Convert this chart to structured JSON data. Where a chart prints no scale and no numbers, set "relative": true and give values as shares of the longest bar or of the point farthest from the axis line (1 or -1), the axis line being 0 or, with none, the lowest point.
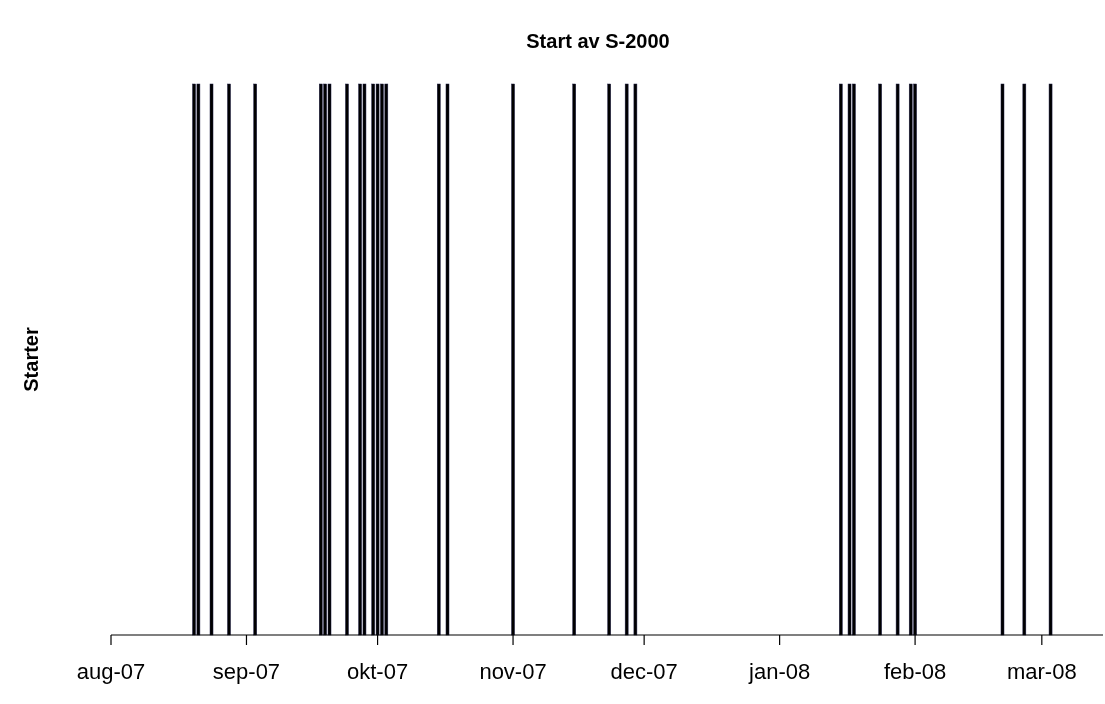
{
  "chart_data": {
    "type": "bar",
    "title": "Start av S-2000",
    "ylabel": "Starter",
    "relative": true,
    "color": "#000000",
    "x": [
      "2007-08-20",
      "2007-08-21",
      "2007-08-24",
      "2007-08-28",
      "2007-09-03",
      "2007-09-18",
      "2007-09-19",
      "2007-09-20",
      "2007-09-24",
      "2007-09-27",
      "2007-09-28",
      "2007-09-30",
      "2007-10-01",
      "2007-10-02",
      "2007-10-03",
      "2007-10-15",
      "2007-10-17",
      "2007-11-01",
      "2007-11-15",
      "2007-11-23",
      "2007-11-27",
      "2007-11-29",
      "2008-01-15",
      "2008-01-17",
      "2008-01-18",
      "2008-01-24",
      "2008-01-28",
      "2008-01-31",
      "2008-02-01",
      "2008-02-21",
      "2008-02-26",
      "2008-03-03"
    ],
    "values": [
      1,
      1,
      1,
      1,
      1,
      1,
      1,
      1,
      1,
      1,
      1,
      1,
      1,
      1,
      1,
      1,
      1,
      1,
      1,
      1,
      1,
      1,
      1,
      1,
      1,
      1,
      1,
      1,
      1,
      1,
      1,
      1
    ],
    "xlim": [
      "2007-08-01",
      "2008-03-15"
    ],
    "xticks": [
      {
        "value": "2007-08-01",
        "label": "aug-07"
      },
      {
        "value": "2007-09-01",
        "label": "sep-07"
      },
      {
        "value": "2007-10-01",
        "label": "okt-07"
      },
      {
        "value": "2007-11-01",
        "label": "nov-07"
      },
      {
        "value": "2007-12-01",
        "label": "dec-07"
      },
      {
        "value": "2008-01-01",
        "label": "jan-08"
      },
      {
        "value": "2008-02-01",
        "label": "feb-08"
      },
      {
        "value": "2008-03-01",
        "label": "mar-08"
      }
    ]
  }
}
